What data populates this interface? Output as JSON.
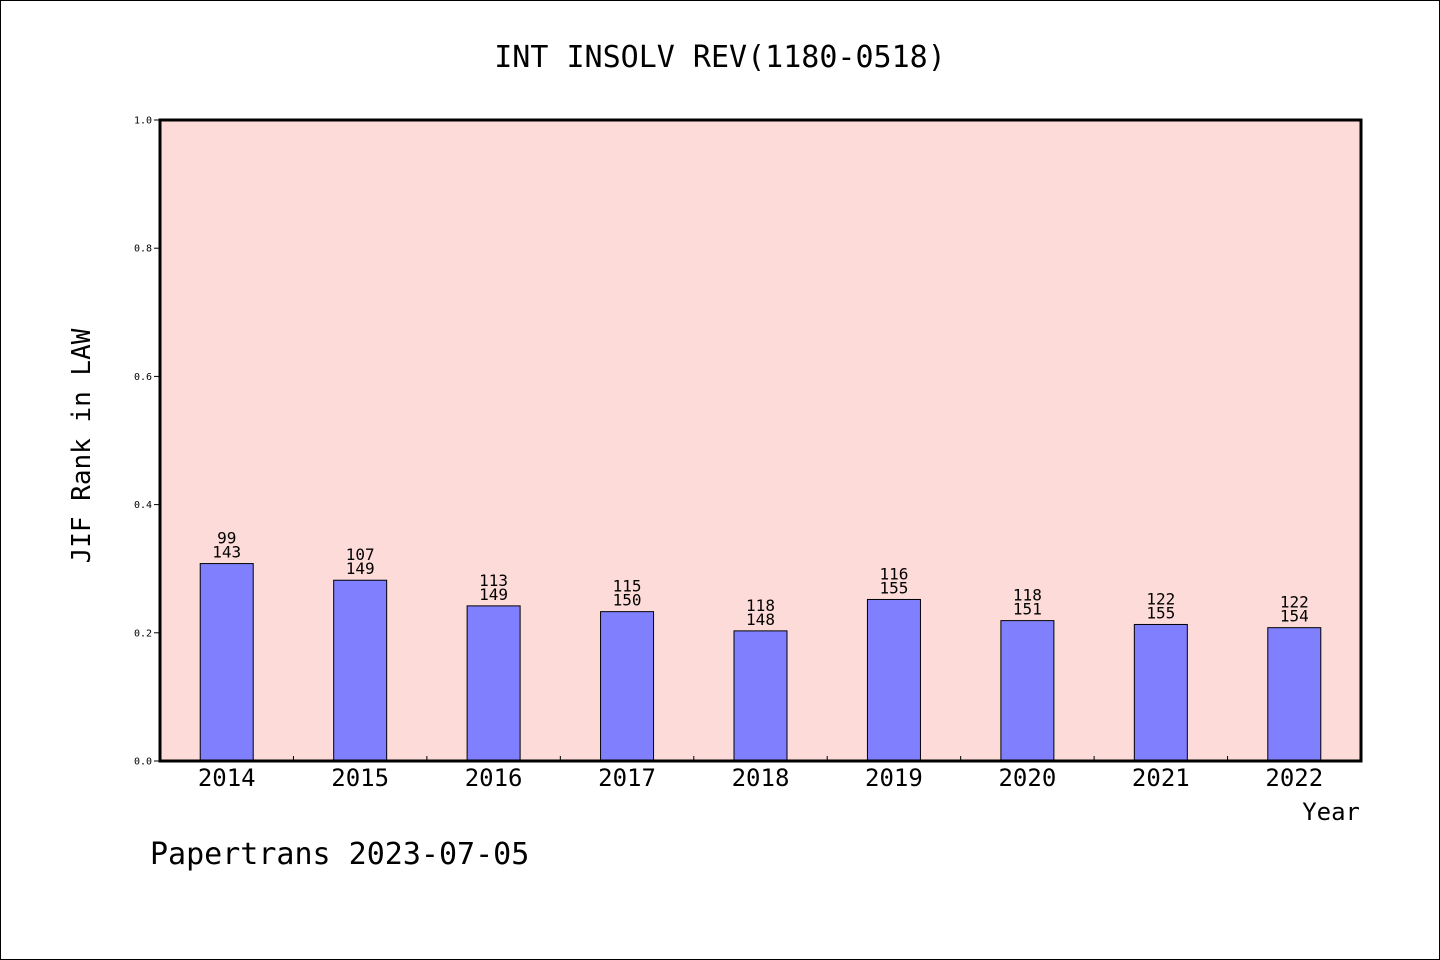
{
  "chart_data": {
    "type": "bar",
    "title": "INT INSOLV REV(1180-0518)",
    "xlabel": "Year",
    "ylabel": "JIF Rank in LAW",
    "ylim": [
      0,
      1.0
    ],
    "yticks": [
      "0.0",
      "0.2",
      "0.4",
      "0.6",
      "0.8",
      "1.0"
    ],
    "categories": [
      "2014",
      "2015",
      "2016",
      "2017",
      "2018",
      "2019",
      "2020",
      "2021",
      "2022"
    ],
    "values": [
      0.308,
      0.282,
      0.242,
      0.233,
      0.203,
      0.252,
      0.219,
      0.213,
      0.208
    ],
    "rank": [
      "99",
      "107",
      "113",
      "115",
      "118",
      "116",
      "118",
      "122",
      "122"
    ],
    "total": [
      "143",
      "149",
      "149",
      "150",
      "148",
      "155",
      "151",
      "155",
      "154"
    ],
    "grid": false,
    "colors": {
      "plot_bg": "#fddbd8",
      "bar": "#8080ff",
      "axis": "#000000"
    }
  },
  "footer": "Papertrans 2023-07-05"
}
